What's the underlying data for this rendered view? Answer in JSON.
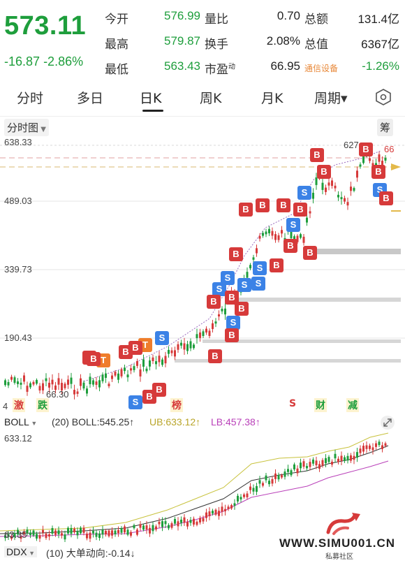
{
  "quote": {
    "price": "573.11",
    "change": "-16.87",
    "change_pct": "-2.86%",
    "stats": [
      {
        "label": "今开",
        "value": "576.99"
      },
      {
        "label": "最高",
        "value": "579.87"
      },
      {
        "label": "最低",
        "value": "563.43"
      },
      {
        "label": "量比",
        "value": "0.70"
      },
      {
        "label": "换手",
        "value": "2.08%"
      },
      {
        "label": "市盈",
        "sup": "动",
        "value": "66.95"
      },
      {
        "label": "总额",
        "value": "131.4亿"
      },
      {
        "label": "总值",
        "value": "6367亿"
      }
    ],
    "sector": {
      "name": "通信设备",
      "change": "-1.26%"
    }
  },
  "tabs": [
    "分时",
    "多日",
    "日K",
    "周K",
    "月K",
    "周期▾"
  ],
  "active_tab": "日K",
  "chart": {
    "dropdown": "分时图",
    "chip_label": "筹",
    "y_labels": [
      "638.33",
      "489.03",
      "339.73",
      "190.43"
    ],
    "y_bottom_label": "4",
    "top_price_label": "627",
    "top_price_label2": "66",
    "low_label": "66.30",
    "events": [
      "激",
      "跌",
      "榜",
      "S",
      "财",
      "减"
    ]
  },
  "boll": {
    "name": "BOLL",
    "params": "(20)",
    "mid": "BOLL:545.25↑",
    "ub": "UB:633.12↑",
    "lb": "LB:457.38↑",
    "top_label": "633.12",
    "bottom_label": "63.35"
  },
  "ddx": {
    "name": "DDX",
    "params": "(10)",
    "value": "大单动向:-0.14↓"
  },
  "watermark": {
    "url": "WWW.SIMU001.CN",
    "label": "私募社区"
  },
  "colors": {
    "up": "#d63a3a",
    "down": "#1e9e3c",
    "buy": "#d63a3a",
    "sell": "#3b82e6",
    "t": "#ef7d2b"
  }
}
